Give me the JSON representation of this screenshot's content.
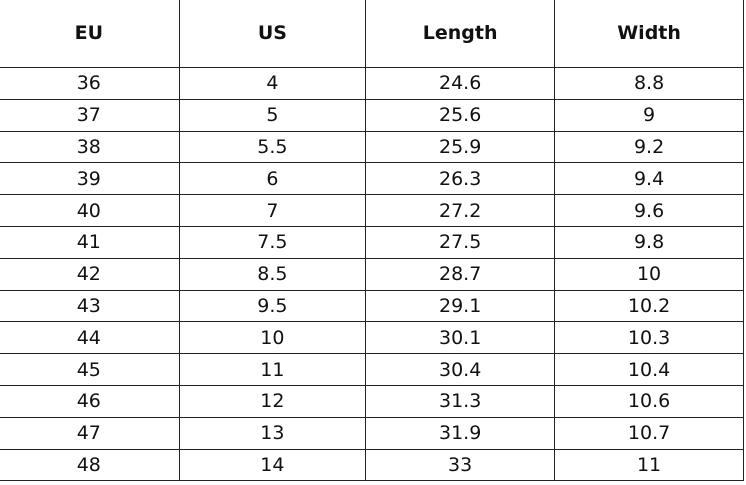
{
  "table": {
    "headers": [
      "EU",
      "US",
      "Length",
      "Width"
    ],
    "rows": [
      [
        "36",
        "4",
        "24.6",
        "8.8"
      ],
      [
        "37",
        "5",
        "25.6",
        "9"
      ],
      [
        "38",
        "5.5",
        "25.9",
        "9.2"
      ],
      [
        "39",
        "6",
        "26.3",
        "9.4"
      ],
      [
        "40",
        "7",
        "27.2",
        "9.6"
      ],
      [
        "41",
        "7.5",
        "27.5",
        "9.8"
      ],
      [
        "42",
        "8.5",
        "28.7",
        "10"
      ],
      [
        "43",
        "9.5",
        "29.1",
        "10.2"
      ],
      [
        "44",
        "10",
        "30.1",
        "10.3"
      ],
      [
        "45",
        "11",
        "30.4",
        "10.4"
      ],
      [
        "46",
        "12",
        "31.3",
        "10.6"
      ],
      [
        "47",
        "13",
        "31.9",
        "10.7"
      ],
      [
        "48",
        "14",
        "33",
        "11"
      ]
    ]
  }
}
